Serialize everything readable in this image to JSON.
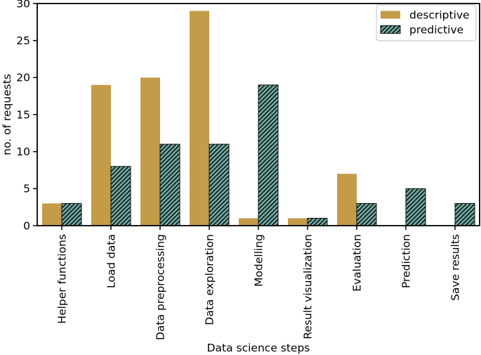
{
  "chart_data": {
    "type": "bar",
    "title": "",
    "xlabel": "Data science steps",
    "ylabel": "no. of requests",
    "categories": [
      "Helper functions",
      "Load data",
      "Data preprocessing",
      "Data exploration",
      "Modelling",
      "Result visualization",
      "Evaluation",
      "Prediction",
      "Save results"
    ],
    "series": [
      {
        "name": "descriptive",
        "color": "#c49b48",
        "hatch": null,
        "values": [
          3,
          19,
          20,
          29,
          1,
          1,
          7,
          0,
          0
        ]
      },
      {
        "name": "predictive",
        "color": "#6fada4",
        "hatch": "diagonal",
        "values": [
          3,
          8,
          11,
          11,
          19,
          1,
          3,
          5,
          3
        ]
      }
    ],
    "ylim": [
      0,
      30
    ],
    "yticks": [
      0,
      5,
      10,
      15,
      20,
      25,
      30
    ],
    "legend_position": "upper right",
    "legend_labels": [
      "descriptive",
      "predictive"
    ],
    "grid": false
  },
  "colors": {
    "spine": "#000000",
    "hatch_line": "#111111",
    "legend_border": "#cccccc",
    "background": "#ffffff"
  }
}
